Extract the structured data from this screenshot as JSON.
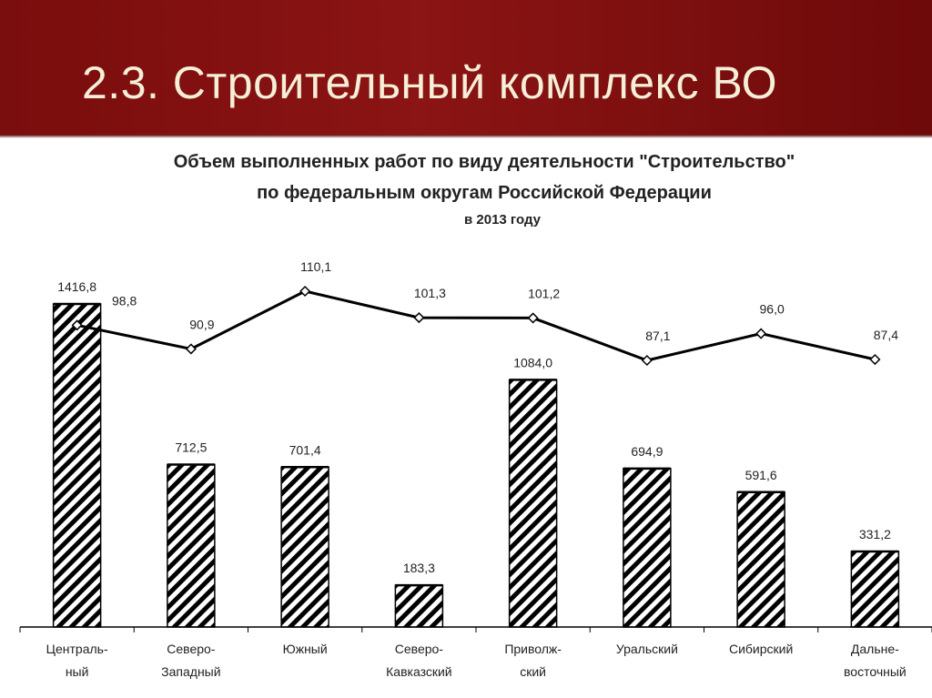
{
  "header": {
    "title": "2.3. Строительный комплекс ВО"
  },
  "colors": {
    "header_background": "#7a0d0d",
    "header_text": "#f6efd8",
    "bar_stripe": "#000000",
    "line": "#000000"
  },
  "chart_data": {
    "type": "bar",
    "title": "Объем выполненных работ по виду деятельности \"Строительство\"",
    "subtitle": "по федеральным округам Российской Федерации",
    "subtitle2": "в 2013 году",
    "categories": [
      [
        "Централь-",
        "ный"
      ],
      [
        "Северо-",
        "Западный"
      ],
      [
        "Южный"
      ],
      [
        "Северо-",
        "Кавказский"
      ],
      [
        "Приволж-",
        "ский"
      ],
      [
        "Уральский"
      ],
      [
        "Сибирский"
      ],
      [
        "Дальне-",
        "восточный"
      ]
    ],
    "series": [
      {
        "type": "bar",
        "values": [
          1416.8,
          712.5,
          701.4,
          183.3,
          1084.0,
          694.9,
          591.6,
          331.2
        ],
        "labels": [
          "1416,8",
          "712,5",
          "701,4",
          "183,3",
          "1084,0",
          "694,9",
          "591,6",
          "331,2"
        ],
        "pattern": "diagonal-hatch"
      },
      {
        "type": "line",
        "values": [
          98.8,
          90.9,
          110.1,
          101.3,
          101.2,
          87.1,
          96.0,
          87.4
        ],
        "labels": [
          "98,8",
          "90,9",
          "110,1",
          "101,3",
          "101,2",
          "87,1",
          "96,0",
          "87,4"
        ],
        "marker": "diamond"
      }
    ],
    "bar_ylim": [
      0,
      1416.8
    ],
    "line_ylim": [
      87.1,
      110.1
    ],
    "grid": false,
    "legend": "none"
  }
}
